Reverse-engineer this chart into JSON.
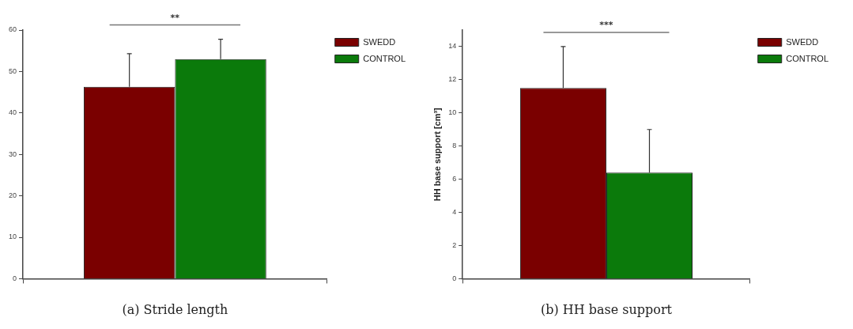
{
  "chart_data": [
    {
      "type": "bar",
      "xlabel": "(a) Stride length",
      "categories": [
        null
      ],
      "ylim": [
        0,
        60
      ],
      "yticks": [
        0,
        10,
        20,
        30,
        40,
        50,
        60
      ],
      "grid": false,
      "legend": "top right",
      "annotations": [
        "**"
      ],
      "series": [
        {
          "name": "SWEDD",
          "color": "#7a0000",
          "values": [
            46.3
          ],
          "errors": [
            [
              46.3,
              54.3
            ]
          ]
        },
        {
          "name": "CONTROL",
          "color": "#0b7a0b",
          "values": [
            53
          ],
          "errors": [
            [
              53,
              57.8
            ]
          ]
        }
      ]
    },
    {
      "type": "bar",
      "xlabel": "(b) HH base support",
      "ylabel": "HH base support [cm³]",
      "categories": [
        null
      ],
      "ylim": [
        0,
        15
      ],
      "yticks": [
        0,
        2,
        4,
        6,
        8,
        10,
        12,
        14
      ],
      "grid": false,
      "legend": "top right",
      "annotations": [
        "***"
      ],
      "series": [
        {
          "name": "SWEDD",
          "color": "#7a0000",
          "values": [
            11.5
          ],
          "errors": [
            [
              11.5,
              14
            ]
          ]
        },
        {
          "name": "CONTROL",
          "color": "#0b7a0b",
          "values": [
            6.4
          ],
          "errors": [
            [
              6.4,
              9
            ]
          ]
        }
      ]
    }
  ]
}
